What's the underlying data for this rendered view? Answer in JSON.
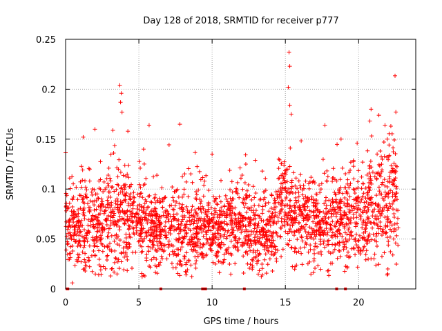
{
  "chart_data": {
    "type": "scatter",
    "title": "Day 128 of 2018, SRMTID for receiver p777",
    "xlabel": "GPS time / hours",
    "ylabel": "SRMTID / TECUs",
    "xlim": [
      0,
      23.9
    ],
    "ylim": [
      0,
      0.25
    ],
    "x_ticks": [
      0,
      5,
      10,
      15,
      20
    ],
    "x_tick_labels": [
      "0",
      "5",
      "10",
      "15",
      "20"
    ],
    "y_ticks": [
      0,
      0.05,
      0.1,
      0.15,
      0.2,
      0.25
    ],
    "y_tick_labels": [
      "0",
      "0.05",
      "0.1",
      "0.15",
      "0.2",
      "0.25"
    ],
    "grid": true,
    "marker": "plus",
    "color": "#ff0000",
    "point_count_approx": 2600,
    "segments": [
      {
        "x": [
          0,
          1
        ],
        "base": 0.063,
        "spread": 0.022
      },
      {
        "x": [
          1,
          2.5
        ],
        "base": 0.068,
        "spread": 0.024
      },
      {
        "x": [
          2.5,
          4.3
        ],
        "base": 0.072,
        "spread": 0.026
      },
      {
        "x": [
          4.3,
          5.5
        ],
        "base": 0.068,
        "spread": 0.022
      },
      {
        "x": [
          5.5,
          7.5
        ],
        "base": 0.058,
        "spread": 0.02
      },
      {
        "x": [
          7.5,
          9.2
        ],
        "base": 0.06,
        "spread": 0.022
      },
      {
        "x": [
          9.2,
          11
        ],
        "base": 0.062,
        "spread": 0.02
      },
      {
        "x": [
          11,
          12.5
        ],
        "base": 0.065,
        "spread": 0.02
      },
      {
        "x": [
          12.5,
          14.5
        ],
        "base": 0.055,
        "spread": 0.02
      },
      {
        "x": [
          14.5,
          15.6
        ],
        "base": 0.085,
        "spread": 0.024
      },
      {
        "x": [
          15.6,
          17
        ],
        "base": 0.072,
        "spread": 0.024
      },
      {
        "x": [
          17,
          19
        ],
        "base": 0.07,
        "spread": 0.022
      },
      {
        "x": [
          19,
          20.7
        ],
        "base": 0.073,
        "spread": 0.024
      },
      {
        "x": [
          20.7,
          22.7
        ],
        "base": 0.085,
        "spread": 0.03
      }
    ],
    "notable_points": [
      {
        "x": 3.7,
        "y": 0.204
      },
      {
        "x": 3.8,
        "y": 0.196
      },
      {
        "x": 3.75,
        "y": 0.187
      },
      {
        "x": 3.85,
        "y": 0.177
      },
      {
        "x": 4.25,
        "y": 0.158
      },
      {
        "x": 5.7,
        "y": 0.164
      },
      {
        "x": 7.8,
        "y": 0.165
      },
      {
        "x": 2.0,
        "y": 0.16
      },
      {
        "x": 15.25,
        "y": 0.237
      },
      {
        "x": 15.3,
        "y": 0.223
      },
      {
        "x": 15.2,
        "y": 0.202
      },
      {
        "x": 15.3,
        "y": 0.184
      },
      {
        "x": 15.4,
        "y": 0.175
      },
      {
        "x": 17.7,
        "y": 0.164
      },
      {
        "x": 20.85,
        "y": 0.18
      },
      {
        "x": 21.8,
        "y": 0.164
      },
      {
        "x": 22.2,
        "y": 0.163
      },
      {
        "x": 1.2,
        "y": 0.152
      },
      {
        "x": 18.8,
        "y": 0.15
      },
      {
        "x": 19.9,
        "y": 0.146
      },
      {
        "x": 10.0,
        "y": 0.135
      },
      {
        "x": 12.3,
        "y": 0.125
      },
      {
        "x": 0.45,
        "y": 0.006
      },
      {
        "x": 22.0,
        "y": 0.02
      },
      {
        "x": 21.95,
        "y": 0.014
      }
    ],
    "zero_points_x": [
      0.1,
      0.15,
      6.5,
      9.35,
      9.45,
      9.55,
      12.2,
      18.5,
      19.1
    ]
  }
}
